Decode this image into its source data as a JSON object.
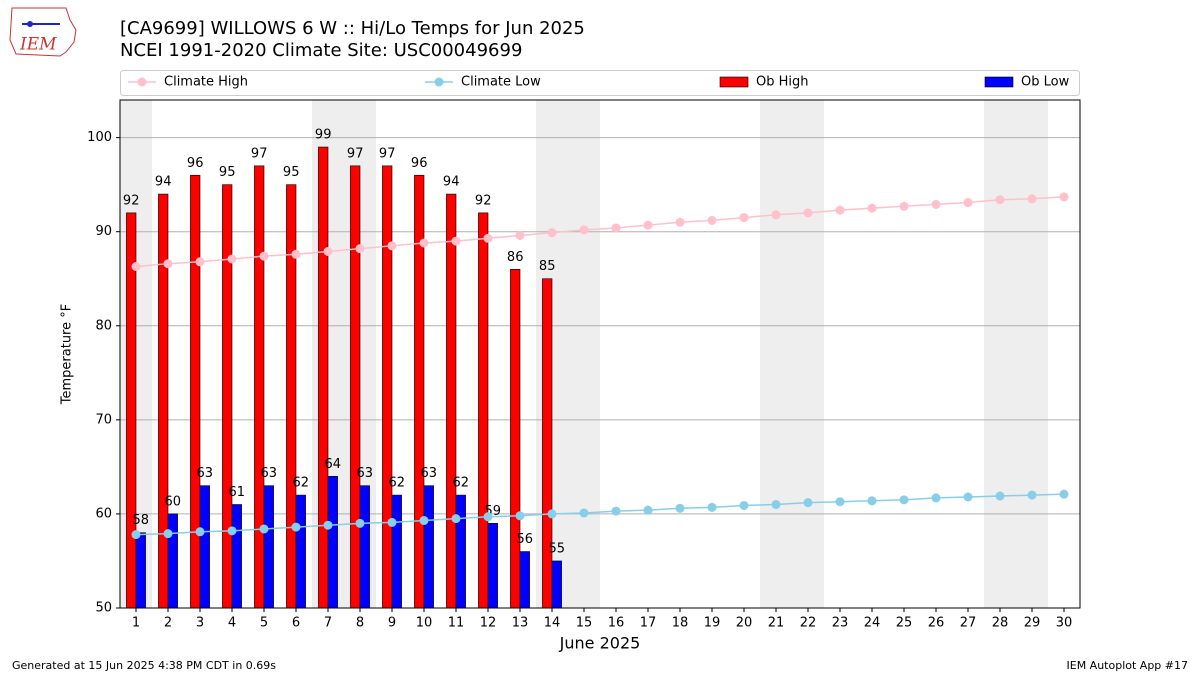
{
  "logo": "IEM",
  "footer_left": "Generated at 15 Jun 2025 4:38 PM CDT in 0.69s",
  "footer_right": "IEM Autoplot App #17",
  "chart_data": {
    "type": "bar",
    "title": "[CA9699] WILLOWS 6 W :: Hi/Lo Temps for Jun 2025",
    "subtitle": "NCEI 1991-2020 Climate Site: USC00049699",
    "xlabel": "June 2025",
    "ylabel": "Temperature °F",
    "x": [
      1,
      2,
      3,
      4,
      5,
      6,
      7,
      8,
      9,
      10,
      11,
      12,
      13,
      14,
      15,
      16,
      17,
      18,
      19,
      20,
      21,
      22,
      23,
      24,
      25,
      26,
      27,
      28,
      29,
      30
    ],
    "xlim": [
      0.5,
      30.5
    ],
    "xticks": [
      1,
      2,
      3,
      4,
      5,
      6,
      7,
      8,
      9,
      10,
      11,
      12,
      13,
      14,
      15,
      16,
      17,
      18,
      19,
      20,
      21,
      22,
      23,
      24,
      25,
      26,
      27,
      28,
      29,
      30
    ],
    "ylim": [
      50,
      104
    ],
    "yticks": [
      50,
      60,
      70,
      80,
      90,
      100
    ],
    "grid": true,
    "shaded_days": [
      1,
      7,
      8,
      14,
      15,
      21,
      22,
      28,
      29
    ],
    "series": [
      {
        "name": "Climate High",
        "type": "line",
        "color": "#ffc0cb",
        "values": [
          86.3,
          86.6,
          86.8,
          87.1,
          87.4,
          87.6,
          87.9,
          88.2,
          88.5,
          88.8,
          89.0,
          89.3,
          89.6,
          89.9,
          90.2,
          90.4,
          90.7,
          91.0,
          91.2,
          91.5,
          91.8,
          92.0,
          92.3,
          92.5,
          92.7,
          92.9,
          93.1,
          93.4,
          93.5,
          93.7
        ]
      },
      {
        "name": "Climate Low",
        "type": "line",
        "color": "#87ceeb",
        "values": [
          57.8,
          57.9,
          58.1,
          58.2,
          58.4,
          58.6,
          58.8,
          59.0,
          59.1,
          59.3,
          59.5,
          59.7,
          59.8,
          60.0,
          60.1,
          60.3,
          60.4,
          60.6,
          60.7,
          60.9,
          61.0,
          61.2,
          61.3,
          61.4,
          61.5,
          61.7,
          61.8,
          61.9,
          62.0,
          62.1
        ]
      },
      {
        "name": "Ob High",
        "type": "bar",
        "color": "#ff0000",
        "values": [
          92,
          94,
          96,
          95,
          97,
          95,
          99,
          97,
          97,
          96,
          94,
          92,
          86,
          85,
          null,
          null,
          null,
          null,
          null,
          null,
          null,
          null,
          null,
          null,
          null,
          null,
          null,
          null,
          null,
          null
        ]
      },
      {
        "name": "Ob Low",
        "type": "bar",
        "color": "#0000ff",
        "values": [
          58,
          60,
          63,
          61,
          63,
          62,
          64,
          63,
          62,
          63,
          62,
          59,
          56,
          55,
          null,
          null,
          null,
          null,
          null,
          null,
          null,
          null,
          null,
          null,
          null,
          null,
          null,
          null,
          null,
          null
        ]
      }
    ]
  }
}
